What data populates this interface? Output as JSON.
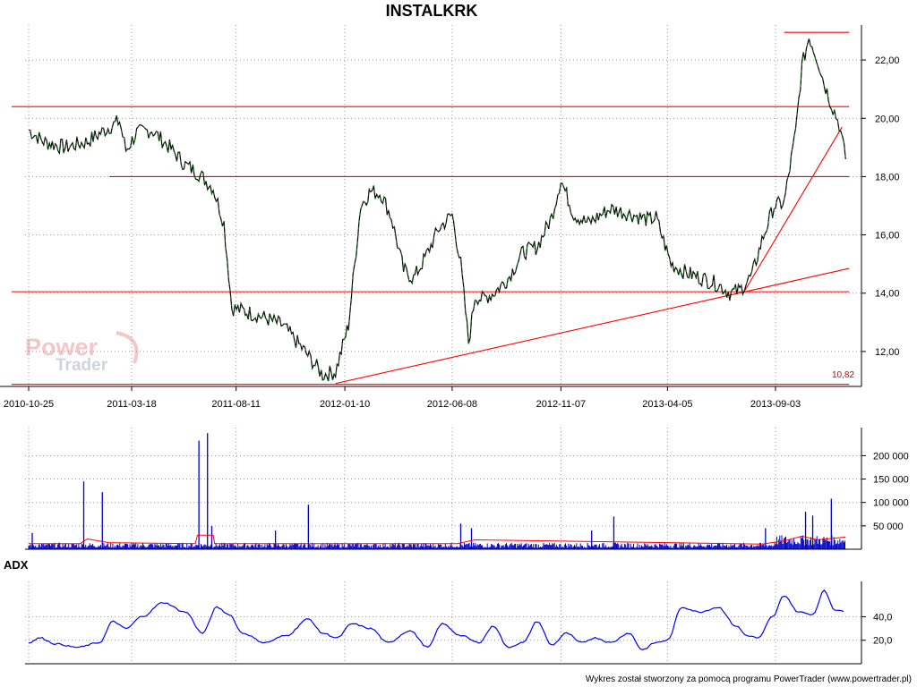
{
  "footer": "Wykres został stworzony za pomocą programu PowerTrader (www.powertrader.pl)",
  "logo": {
    "line1": "Power",
    "line2": "Trader"
  },
  "colors": {
    "price": "#000000",
    "price_up": "#008000",
    "lines": "#ff0000",
    "volume": "#0000cc",
    "volume_avg": "#ff0000",
    "adx": "#0000ff"
  },
  "chart_data": [
    {
      "type": "line",
      "title": "INSTALKRK",
      "x_ticks": [
        "2010-10-25",
        "2011-03-18",
        "2011-08-11",
        "2012-01-10",
        "2012-06-08",
        "2012-11-07",
        "2013-04-05",
        "2013-09-03"
      ],
      "ylim": [
        10.8,
        23.2
      ],
      "y_ticks": [
        "12,00",
        "14,00",
        "16,00",
        "18,00",
        "20,00",
        "22,00"
      ],
      "y_tick_values": [
        12,
        14,
        16,
        18,
        20,
        22
      ],
      "min_label": "10,82",
      "grid": true,
      "series": [
        {
          "x": [
            "2010-10-25",
            "2010-11-15",
            "2010-12-15",
            "2011-01-15",
            "2011-02-15",
            "2011-03-01",
            "2011-03-10",
            "2011-03-25",
            "2011-04-15",
            "2011-05-10",
            "2011-06-01",
            "2011-06-20",
            "2011-07-10",
            "2011-07-25",
            "2011-08-05",
            "2011-08-20",
            "2011-09-15",
            "2011-10-15",
            "2011-11-15",
            "2011-12-10",
            "2011-12-28",
            "2012-01-15",
            "2012-02-01",
            "2012-02-15",
            "2012-03-01",
            "2012-03-15",
            "2012-04-01",
            "2012-04-15",
            "2012-05-01",
            "2012-05-20",
            "2012-06-08",
            "2012-06-20",
            "2012-07-01",
            "2012-07-10",
            "2012-07-20",
            "2012-08-05",
            "2012-08-25",
            "2012-09-15",
            "2012-10-05",
            "2012-10-25",
            "2012-11-07",
            "2012-11-25",
            "2012-12-15",
            "2013-01-15",
            "2013-02-15",
            "2013-03-10",
            "2013-03-20",
            "2013-04-10",
            "2013-05-01",
            "2013-05-25",
            "2013-06-15",
            "2013-07-01",
            "2013-07-15",
            "2013-08-01",
            "2013-08-15",
            "2013-09-01",
            "2013-09-15",
            "2013-10-01",
            "2013-10-10",
            "2013-10-20",
            "2013-11-01",
            "2013-11-10",
            "2013-11-20",
            "2013-12-01",
            "2013-12-10"
          ],
          "values": [
            19.6,
            19.2,
            19.0,
            19.2,
            19.7,
            19.9,
            18.9,
            19.5,
            19.6,
            19.0,
            18.4,
            18.1,
            17.6,
            16.4,
            13.5,
            13.4,
            13.2,
            12.9,
            12.0,
            11.2,
            11.3,
            12.9,
            17.0,
            17.5,
            17.4,
            16.6,
            14.8,
            14.5,
            15.2,
            16.2,
            16.7,
            15.0,
            12.3,
            13.9,
            13.8,
            14.0,
            14.5,
            15.4,
            15.6,
            16.6,
            17.9,
            16.7,
            16.4,
            16.9,
            16.7,
            16.5,
            16.6,
            15.0,
            14.7,
            14.5,
            14.3,
            14.0,
            14.1,
            14.6,
            15.8,
            17.0,
            17.1,
            19.5,
            21.8,
            22.8,
            22.0,
            21.2,
            20.5,
            19.8,
            18.6
          ]
        }
      ],
      "trend_lines": [
        {
          "kind": "horizontal",
          "y": 20.4,
          "x_from": "2010-10-01",
          "x_to": "2013-12-15"
        },
        {
          "kind": "horizontal",
          "y": 18.0,
          "x_from": "2011-02-15",
          "x_to": "2013-12-15"
        },
        {
          "kind": "horizontal",
          "y": 14.05,
          "x_from": "2010-10-01",
          "x_to": "2013-12-15"
        },
        {
          "kind": "horizontal",
          "y": 10.87,
          "x_from": "2010-10-01",
          "x_to": "2013-12-15"
        },
        {
          "kind": "horizontal",
          "y": 22.95,
          "x_from": "2013-09-15",
          "x_to": "2013-12-15"
        },
        {
          "kind": "segment",
          "from": [
            "2011-12-28",
            10.9
          ],
          "to": [
            "2013-12-15",
            14.85
          ]
        },
        {
          "kind": "segment",
          "from": [
            "2013-07-20",
            14.0
          ],
          "to": [
            "2013-12-05",
            19.7
          ]
        }
      ]
    },
    {
      "type": "bar",
      "y_ticks": [
        "50 000",
        "100 000",
        "150 000",
        "200 000"
      ],
      "y_tick_values": [
        50000,
        100000,
        150000,
        200000
      ],
      "ylim": [
        0,
        260000
      ],
      "volume_spikes": [
        {
          "x": "2010-10-30",
          "value": 35000
        },
        {
          "x": "2011-01-10",
          "value": 145000
        },
        {
          "x": "2011-02-05",
          "value": 122000
        },
        {
          "x": "2011-06-20",
          "value": 232000
        },
        {
          "x": "2011-07-02",
          "value": 248000
        },
        {
          "x": "2011-07-08",
          "value": 50000
        },
        {
          "x": "2011-11-20",
          "value": 95000
        },
        {
          "x": "2011-10-05",
          "value": 40000
        },
        {
          "x": "2012-06-20",
          "value": 55000
        },
        {
          "x": "2012-07-05",
          "value": 45000
        },
        {
          "x": "2012-12-20",
          "value": 40000
        },
        {
          "x": "2013-01-20",
          "value": 70000
        },
        {
          "x": "2013-08-20",
          "value": 45000
        },
        {
          "x": "2013-10-15",
          "value": 80000
        },
        {
          "x": "2013-10-25",
          "value": 72000
        },
        {
          "x": "2013-11-20",
          "value": 108000
        }
      ],
      "avg_series": {
        "x": [
          "2010-10-25",
          "2011-01-05",
          "2011-01-15",
          "2011-02-15",
          "2011-06-15",
          "2011-06-18",
          "2011-07-10",
          "2011-07-12",
          "2012-06-15",
          "2012-07-10",
          "2013-08-15",
          "2013-09-15",
          "2013-10-10",
          "2013-11-01",
          "2013-12-10"
        ],
        "values": [
          12000,
          12000,
          22000,
          14000,
          12000,
          30000,
          30000,
          12000,
          12000,
          20000,
          11000,
          18000,
          28000,
          20000,
          26000
        ]
      }
    },
    {
      "type": "line",
      "title": "ADX",
      "y_ticks": [
        "20,0",
        "40,0"
      ],
      "y_tick_values": [
        20,
        40
      ],
      "ylim": [
        0,
        70
      ],
      "series": [
        {
          "name": "ADX",
          "x": [
            "2010-10-25",
            "2010-11-10",
            "2010-12-01",
            "2011-01-01",
            "2011-02-01",
            "2011-02-20",
            "2011-03-10",
            "2011-04-01",
            "2011-05-01",
            "2011-06-01",
            "2011-06-25",
            "2011-07-15",
            "2011-08-01",
            "2011-08-20",
            "2011-09-20",
            "2011-10-20",
            "2011-11-20",
            "2011-12-10",
            "2011-12-30",
            "2012-01-20",
            "2012-02-15",
            "2012-03-10",
            "2012-04-10",
            "2012-05-05",
            "2012-05-25",
            "2012-06-20",
            "2012-07-15",
            "2012-08-05",
            "2012-08-25",
            "2012-09-15",
            "2012-10-05",
            "2012-10-25",
            "2012-11-15",
            "2012-12-05",
            "2012-12-25",
            "2013-01-15",
            "2013-02-10",
            "2013-03-01",
            "2013-03-20",
            "2013-04-05",
            "2013-04-25",
            "2013-05-20",
            "2013-06-15",
            "2013-07-10",
            "2013-07-25",
            "2013-08-10",
            "2013-08-30",
            "2013-09-15",
            "2013-10-05",
            "2013-10-25",
            "2013-11-10",
            "2013-11-25",
            "2013-12-10"
          ],
          "values": [
            18,
            22,
            17,
            14,
            18,
            36,
            30,
            40,
            52,
            44,
            26,
            48,
            42,
            26,
            18,
            24,
            38,
            26,
            22,
            34,
            30,
            18,
            28,
            14,
            34,
            24,
            18,
            32,
            14,
            18,
            36,
            16,
            26,
            18,
            22,
            18,
            26,
            12,
            18,
            20,
            48,
            44,
            48,
            32,
            24,
            22,
            40,
            58,
            44,
            42,
            62,
            46,
            44
          ]
        }
      ]
    }
  ]
}
